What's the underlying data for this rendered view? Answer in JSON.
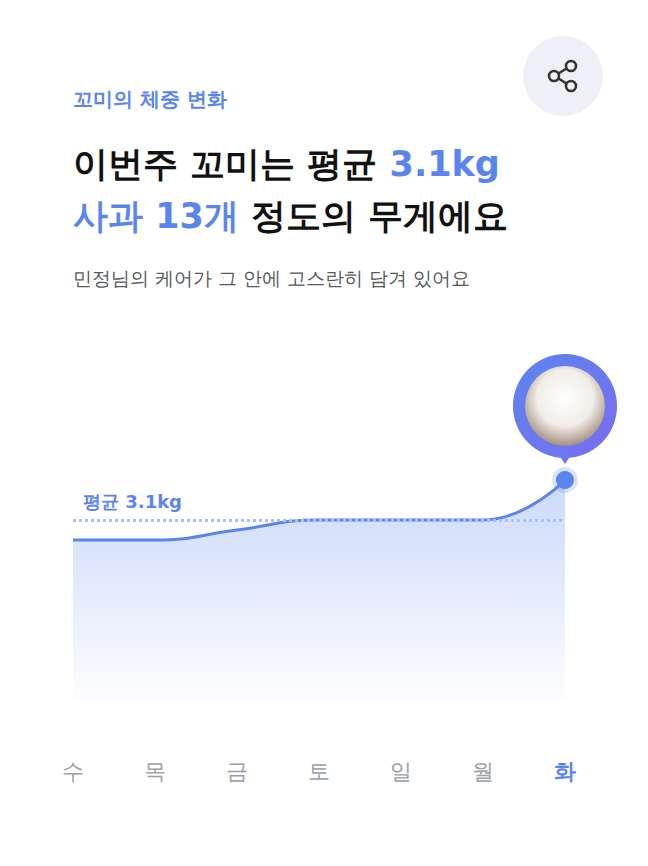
{
  "header": {
    "label": "꼬미의 체중 변화",
    "headline": [
      [
        {
          "text": "이번주 꼬미는 평균 ",
          "accent": false
        },
        {
          "text": "3.1kg",
          "accent": true
        }
      ],
      [
        {
          "text": "사과 13개",
          "accent": true
        },
        {
          "text": " 정도의 무게에요",
          "accent": false
        }
      ]
    ],
    "subtitle": "민정님의 케어가 그 안에 고스란히 담겨 있어요"
  },
  "chart_data": {
    "type": "line",
    "categories": [
      "수",
      "목",
      "금",
      "토",
      "일",
      "월",
      "화"
    ],
    "values": [
      3.0,
      3.0,
      3.05,
      3.1,
      3.1,
      3.1,
      3.3
    ],
    "color": "#5b85ee",
    "ylim": [
      2.2,
      3.6
    ],
    "tick_labels": "x",
    "grid": false,
    "average": {
      "value": 3.1,
      "label": "평균 3.1kg"
    }
  }
}
